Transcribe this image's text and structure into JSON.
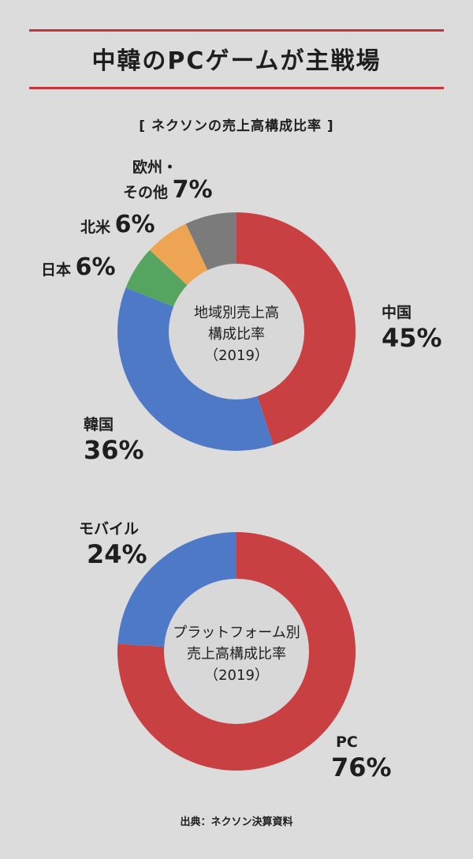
{
  "title": "中韓のPCゲームが主戦場",
  "subtitle": "[ ネクソンの売上高構成比率 ]",
  "source": "出典：ネクソン決算資料",
  "colors": {
    "background": "#dcdcdc",
    "accent_rule": "#c8323a",
    "china": "#c94043",
    "korea": "#4e79c6",
    "japan": "#55a560",
    "north_america": "#eea553",
    "europe_other": "#7b7b7b",
    "pc": "#c94043",
    "mobile": "#4e79c6",
    "center": "#d8d8d8"
  },
  "chart_data": [
    {
      "type": "pie",
      "variant": "donut",
      "center_label": [
        "地域別売上高",
        "構成比率",
        "（2019）"
      ],
      "slices": [
        {
          "name": "中国",
          "value": 45,
          "label": "45%",
          "color": "#c94043"
        },
        {
          "name": "韓国",
          "value": 36,
          "label": "36%",
          "color": "#4e79c6"
        },
        {
          "name": "日本",
          "value": 6,
          "label": "6%",
          "color": "#55a560"
        },
        {
          "name": "北米",
          "value": 6,
          "label": "6%",
          "color": "#eea553"
        },
        {
          "name": "欧州・その他",
          "value": 7,
          "label": "7%",
          "color": "#7b7b7b"
        }
      ]
    },
    {
      "type": "pie",
      "variant": "donut",
      "center_label": [
        "プラットフォーム別",
        "売上高構成比率",
        "（2019）"
      ],
      "slices": [
        {
          "name": "PC",
          "value": 76,
          "label": "76%",
          "color": "#c94043"
        },
        {
          "name": "モバイル",
          "value": 24,
          "label": "24%",
          "color": "#4e79c6"
        }
      ]
    }
  ],
  "labels": {
    "china_name": "中国",
    "china_pct": "45%",
    "korea_name": "韓国",
    "korea_pct": "36%",
    "japan_name": "日本",
    "japan_pct": "6%",
    "na_name": "北米",
    "na_pct": "6%",
    "eu_name_1": "欧州・",
    "eu_name_2": "その他",
    "eu_pct": "7%",
    "pc_name": "PC",
    "pc_pct": "76%",
    "mobile_name": "モバイル",
    "mobile_pct": "24%"
  }
}
